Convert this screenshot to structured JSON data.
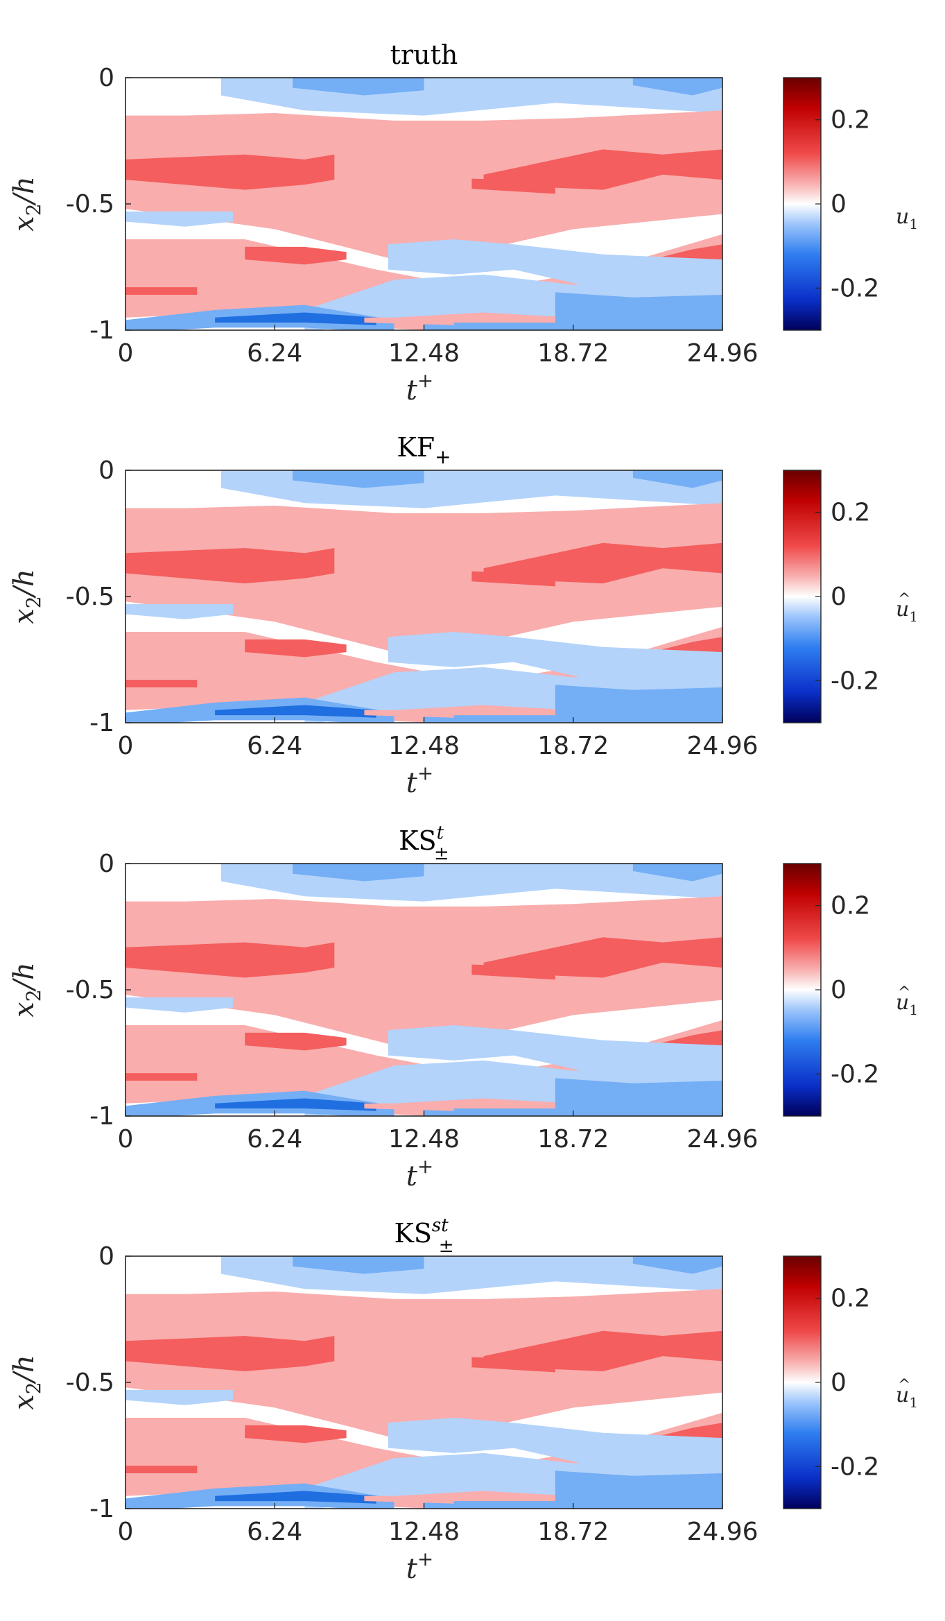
{
  "chart_data": [
    {
      "type": "heatmap",
      "title": "truth",
      "title_sub": "",
      "title_sup": "",
      "xlabel": "t",
      "xlabel_sup": "+",
      "ylabel": "x",
      "ylabel_sub": "2",
      "ylabel_tail": "/h",
      "x_ticks": [
        "0",
        "6.24",
        "12.48",
        "18.72",
        "24.96"
      ],
      "xlim": [
        0,
        24.96
      ],
      "y_ticks": [
        "0",
        "-0.5",
        "-1"
      ],
      "ylim": [
        -1,
        0
      ],
      "colorbar": {
        "label": "u",
        "label_sub": "1",
        "label_hat": false,
        "ticks": [
          "0.2",
          "0",
          "-0.2"
        ],
        "range": [
          -0.3,
          0.3
        ]
      },
      "seed": 1
    },
    {
      "type": "heatmap",
      "title": "KF",
      "title_sub": "+",
      "title_sup": "",
      "xlabel": "t",
      "xlabel_sup": "+",
      "ylabel": "x",
      "ylabel_sub": "2",
      "ylabel_tail": "/h",
      "x_ticks": [
        "0",
        "6.24",
        "12.48",
        "18.72",
        "24.96"
      ],
      "xlim": [
        0,
        24.96
      ],
      "y_ticks": [
        "0",
        "-0.5",
        "-1"
      ],
      "ylim": [
        -1,
        0
      ],
      "colorbar": {
        "label": "u",
        "label_sub": "1",
        "label_hat": true,
        "ticks": [
          "0.2",
          "0",
          "-0.2"
        ],
        "range": [
          -0.3,
          0.3
        ]
      },
      "seed": 2
    },
    {
      "type": "heatmap",
      "title": "KS",
      "title_sub": "±",
      "title_sup": "t",
      "xlabel": "t",
      "xlabel_sup": "+",
      "ylabel": "x",
      "ylabel_sub": "2",
      "ylabel_tail": "/h",
      "x_ticks": [
        "0",
        "6.24",
        "12.48",
        "18.72",
        "24.96"
      ],
      "xlim": [
        0,
        24.96
      ],
      "y_ticks": [
        "0",
        "-0.5",
        "-1"
      ],
      "ylim": [
        -1,
        0
      ],
      "colorbar": {
        "label": "u",
        "label_sub": "1",
        "label_hat": true,
        "ticks": [
          "0.2",
          "0",
          "-0.2"
        ],
        "range": [
          -0.3,
          0.3
        ]
      },
      "seed": 3
    },
    {
      "type": "heatmap",
      "title": "KS",
      "title_sub": "±",
      "title_sup": "st",
      "xlabel": "t",
      "xlabel_sup": "+",
      "ylabel": "x",
      "ylabel_sub": "2",
      "ylabel_tail": "/h",
      "x_ticks": [
        "0",
        "6.24",
        "12.48",
        "18.72",
        "24.96"
      ],
      "xlim": [
        0,
        24.96
      ],
      "y_ticks": [
        "0",
        "-0.5",
        "-1"
      ],
      "ylim": [
        -1,
        0
      ],
      "colorbar": {
        "label": "u",
        "label_sub": "1",
        "label_hat": true,
        "ticks": [
          "0.2",
          "0",
          "-0.2"
        ],
        "range": [
          -0.3,
          0.3
        ]
      },
      "seed": 4
    }
  ],
  "colors": {
    "positive_light": "#f9adad",
    "positive_mid": "#f45e5e",
    "positive_dark": "#d62020",
    "negative_light": "#b3d3fb",
    "negative_mid": "#74aef5",
    "negative_dark": "#1f6fe0",
    "axis": "#262626"
  }
}
